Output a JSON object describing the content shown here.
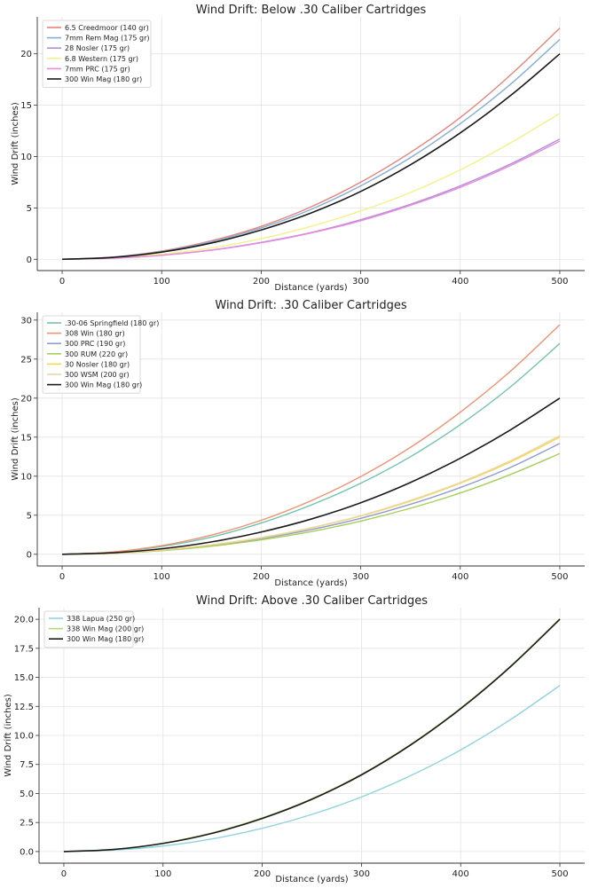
{
  "chart_data": [
    {
      "type": "line",
      "title": "Wind Drift: Below .30 Caliber Cartridges",
      "xlabel": "Distance (yards)",
      "ylabel": "Wind Drift (inches)",
      "x": [
        0,
        50,
        100,
        150,
        200,
        250,
        300,
        350,
        400,
        450,
        500
      ],
      "xlim": [
        -25,
        525
      ],
      "ylim": [
        -1.1,
        23.6
      ],
      "xticks": [
        0,
        100,
        200,
        300,
        400,
        500
      ],
      "xtick_labels": [
        "0",
        "100",
        "200",
        "300",
        "400",
        "500"
      ],
      "yticks": [
        0,
        5,
        10,
        15,
        20
      ],
      "ytick_labels": [
        "0",
        "5",
        "10",
        "15",
        "20"
      ],
      "grid": true,
      "legend_position": "top-left",
      "series": [
        {
          "name": "6.5 Creedmoor (140 gr)",
          "color": "#e8837a",
          "values": [
            0,
            0.2,
            0.8,
            1.8,
            3.2,
            5.1,
            7.5,
            10.4,
            13.8,
            17.9,
            22.5
          ]
        },
        {
          "name": "7mm Rem Mag (175 gr)",
          "color": "#86aed6",
          "values": [
            0,
            0.2,
            0.75,
            1.7,
            3.05,
            4.85,
            7.15,
            9.9,
            13.2,
            17.0,
            21.4
          ]
        },
        {
          "name": "28 Nosler (175 gr)",
          "color": "#b48fd6",
          "values": [
            0,
            0.1,
            0.4,
            0.9,
            1.65,
            2.6,
            3.85,
            5.35,
            7.15,
            9.25,
            11.7
          ]
        },
        {
          "name": "6.8 Western (175 gr)",
          "color": "#f2f28a",
          "values": [
            0,
            0.12,
            0.5,
            1.1,
            2.0,
            3.2,
            4.7,
            6.5,
            8.7,
            11.3,
            14.2
          ]
        },
        {
          "name": "7mm PRC (175 gr)",
          "color": "#e98be0",
          "values": [
            0,
            0.1,
            0.38,
            0.88,
            1.6,
            2.55,
            3.75,
            5.25,
            7.0,
            9.1,
            11.5
          ]
        },
        {
          "name": "300 Win Mag (180 gr)",
          "color": "#1a1a1a",
          "values": [
            0,
            0.18,
            0.7,
            1.58,
            2.85,
            4.5,
            6.6,
            9.2,
            12.3,
            15.9,
            20.0
          ]
        }
      ]
    },
    {
      "type": "line",
      "title": "Wind Drift: .30 Caliber Cartridges",
      "xlabel": "Distance (yards)",
      "ylabel": "Wind Drift (inches)",
      "x": [
        0,
        50,
        100,
        150,
        200,
        250,
        300,
        350,
        400,
        450,
        500
      ],
      "xlim": [
        -25,
        525
      ],
      "ylim": [
        -1.5,
        31
      ],
      "xticks": [
        0,
        100,
        200,
        300,
        400,
        500
      ],
      "xtick_labels": [
        "0",
        "100",
        "200",
        "300",
        "400",
        "500"
      ],
      "yticks": [
        0,
        5,
        10,
        15,
        20,
        25,
        30
      ],
      "ytick_labels": [
        "0",
        "5",
        "10",
        "15",
        "20",
        "25",
        "30"
      ],
      "grid": true,
      "legend_position": "top-left",
      "series": [
        {
          "name": ".30-06 Springfield (180 gr)",
          "color": "#72c2b0",
          "values": [
            0,
            0.25,
            1.0,
            2.2,
            4.0,
            6.3,
            9.1,
            12.5,
            16.6,
            21.4,
            27.0
          ]
        },
        {
          "name": "308 Win (180 gr)",
          "color": "#ef9272",
          "values": [
            0,
            0.28,
            1.1,
            2.45,
            4.35,
            6.85,
            9.95,
            13.7,
            18.2,
            23.4,
            29.4
          ]
        },
        {
          "name": "300 PRC (190 gr)",
          "color": "#909bd0",
          "values": [
            0,
            0.13,
            0.5,
            1.12,
            2.0,
            3.15,
            4.6,
            6.4,
            8.55,
            11.1,
            14.2
          ]
        },
        {
          "name": "300 RUM (220 gr)",
          "color": "#a6cf59",
          "values": [
            0,
            0.12,
            0.46,
            1.04,
            1.85,
            2.9,
            4.25,
            5.9,
            7.85,
            10.2,
            12.9
          ]
        },
        {
          "name": "30 Nosler (180 gr)",
          "color": "#f5d84e",
          "values": [
            0,
            0.13,
            0.53,
            1.2,
            2.1,
            3.35,
            4.9,
            6.8,
            9.1,
            11.8,
            15.0
          ]
        },
        {
          "name": "300 WSM (200 gr)",
          "color": "#ecd6a6",
          "values": [
            0,
            0.14,
            0.55,
            1.22,
            2.15,
            3.4,
            4.95,
            6.9,
            9.2,
            11.95,
            15.2
          ]
        },
        {
          "name": "300 Win Mag (180 gr)",
          "color": "#1a1a1a",
          "values": [
            0,
            0.18,
            0.7,
            1.58,
            2.85,
            4.5,
            6.6,
            9.2,
            12.3,
            15.9,
            20.0
          ]
        }
      ]
    },
    {
      "type": "line",
      "title": "Wind Drift: Above .30 Caliber Cartridges",
      "xlabel": "Distance (yards)",
      "ylabel": "Wind Drift (inches)",
      "x": [
        0,
        50,
        100,
        150,
        200,
        250,
        300,
        350,
        400,
        450,
        500
      ],
      "xlim": [
        -25,
        525
      ],
      "ylim": [
        -1.0,
        21.0
      ],
      "xticks": [
        0,
        100,
        200,
        300,
        400,
        500
      ],
      "xtick_labels": [
        "0",
        "100",
        "200",
        "300",
        "400",
        "500"
      ],
      "yticks": [
        0,
        2.5,
        5,
        7.5,
        10,
        12.5,
        15,
        17.5,
        20
      ],
      "ytick_labels": [
        "0.0",
        "2.5",
        "5.0",
        "7.5",
        "10.0",
        "12.5",
        "15.0",
        "17.5",
        "20.0"
      ],
      "grid": true,
      "legend_position": "top-left",
      "series": [
        {
          "name": "338 Lapua (250 gr)",
          "color": "#8fd3dc",
          "values": [
            0,
            0.12,
            0.48,
            1.1,
            2.0,
            3.2,
            4.7,
            6.55,
            8.75,
            11.35,
            14.3
          ]
        },
        {
          "name": "338 Win Mag (200 gr)",
          "color": "#b3d87a",
          "values": [
            0,
            0.18,
            0.72,
            1.62,
            2.9,
            4.55,
            6.65,
            9.25,
            12.35,
            15.95,
            20.05
          ]
        },
        {
          "name": "300 Win Mag (180 gr)",
          "color": "#1a1a1a",
          "values": [
            0,
            0.18,
            0.7,
            1.58,
            2.85,
            4.5,
            6.6,
            9.2,
            12.3,
            15.9,
            20.0
          ]
        }
      ]
    }
  ]
}
